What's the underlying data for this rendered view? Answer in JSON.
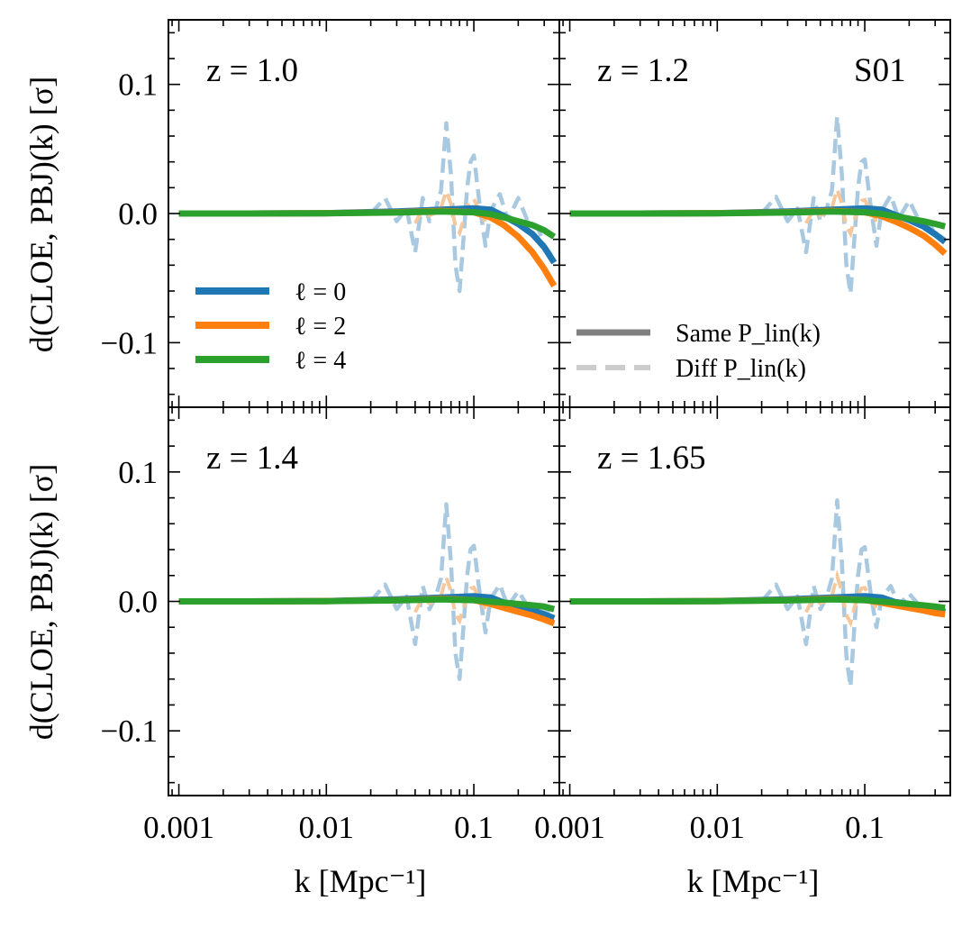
{
  "figure": {
    "xlabel": "k [Mpc⁻¹]",
    "ylabel": "d(CLOE, PBJ)(k) [σ]",
    "badge": "S01"
  },
  "colors": {
    "l0": "#1f77b4",
    "l2": "#ff7f0e",
    "l4": "#2ca02c",
    "diff": "#a9c9e0",
    "diff_orange": "#f6c79a",
    "legend_same": "#808080",
    "legend_diff": "#cccccc"
  },
  "legend_left": {
    "placement": "center-left of top-left panel",
    "entries": [
      {
        "label": "ℓ = 0",
        "color": "#1f77b4"
      },
      {
        "label": "ℓ = 2",
        "color": "#ff7f0e"
      },
      {
        "label": "ℓ = 4",
        "color": "#2ca02c"
      }
    ]
  },
  "legend_right": {
    "placement": "lower-right of top-right panel",
    "entries": [
      {
        "label": "Same P_lin(k)",
        "style": "solid"
      },
      {
        "label": "Diff P_lin(k)",
        "style": "dashed"
      }
    ]
  },
  "chart_data": [
    {
      "type": "line",
      "title": "z = 1.0",
      "xscale": "log",
      "xlim": [
        0.00085,
        0.38
      ],
      "ylim": [
        -0.15,
        0.15
      ],
      "xticklabels": [
        "0.001",
        "0.01",
        "0.1"
      ],
      "yticklabels": [
        "−0.1",
        "0.0",
        "0.1"
      ],
      "x": [
        0.001,
        0.003,
        0.01,
        0.03,
        0.06,
        0.1,
        0.13,
        0.16,
        0.2,
        0.25,
        0.3,
        0.35
      ],
      "series": [
        {
          "name": "ℓ = 0",
          "style": "solid",
          "values": [
            0,
            0,
            0.0003,
            0.0015,
            0.003,
            0.004,
            0.003,
            -0.002,
            -0.008,
            -0.016,
            -0.026,
            -0.038
          ]
        },
        {
          "name": "ℓ = 2",
          "style": "solid",
          "values": [
            0,
            0,
            0.0003,
            0.001,
            0.002,
            0.001,
            -0.003,
            -0.009,
            -0.018,
            -0.03,
            -0.043,
            -0.056
          ]
        },
        {
          "name": "ℓ = 4",
          "style": "solid",
          "values": [
            0,
            0,
            0.0002,
            0.0008,
            0.0015,
            0.001,
            -0.0005,
            -0.003,
            -0.006,
            -0.009,
            -0.013,
            -0.018
          ]
        }
      ],
      "diff": {
        "x": [
          0.02,
          0.025,
          0.03,
          0.035,
          0.04,
          0.045,
          0.05,
          0.055,
          0.06,
          0.065,
          0.07,
          0.075,
          0.08,
          0.085,
          0.09,
          0.095,
          0.1,
          0.11,
          0.12,
          0.13,
          0.15,
          0.17,
          0.2,
          0.23,
          0.27,
          0.3,
          0.35
        ],
        "values": [
          0,
          0.012,
          -0.006,
          0.004,
          -0.03,
          0.012,
          -0.006,
          0.003,
          0.018,
          0.07,
          0.03,
          -0.04,
          -0.06,
          -0.02,
          0.02,
          0.04,
          0.045,
          0.005,
          -0.025,
          0.002,
          0.015,
          -0.005,
          0.012,
          -0.005,
          -0.01,
          -0.025,
          -0.035
        ]
      }
    },
    {
      "type": "line",
      "title": "z = 1.2",
      "xscale": "log",
      "xlim": [
        0.00085,
        0.38
      ],
      "ylim": [
        -0.15,
        0.15
      ],
      "xticklabels": [
        "0.001",
        "0.01",
        "0.1"
      ],
      "yticklabels": [],
      "x": [
        0.001,
        0.003,
        0.01,
        0.03,
        0.06,
        0.1,
        0.13,
        0.16,
        0.2,
        0.25,
        0.3,
        0.35
      ],
      "series": [
        {
          "name": "ℓ = 0",
          "style": "solid",
          "values": [
            0,
            0,
            0.0003,
            0.0015,
            0.003,
            0.004,
            0.003,
            -0.001,
            -0.005,
            -0.01,
            -0.016,
            -0.022
          ]
        },
        {
          "name": "ℓ = 2",
          "style": "solid",
          "values": [
            0,
            0,
            0.0003,
            0.001,
            0.002,
            0.001,
            -0.002,
            -0.006,
            -0.011,
            -0.017,
            -0.024,
            -0.031
          ]
        },
        {
          "name": "ℓ = 4",
          "style": "solid",
          "values": [
            0,
            0,
            0.0002,
            0.0008,
            0.0015,
            0.001,
            -0.0003,
            -0.002,
            -0.004,
            -0.006,
            -0.008,
            -0.01
          ]
        }
      ],
      "diff": {
        "x": [
          0.02,
          0.025,
          0.03,
          0.035,
          0.04,
          0.045,
          0.05,
          0.055,
          0.06,
          0.065,
          0.07,
          0.075,
          0.08,
          0.085,
          0.09,
          0.095,
          0.1,
          0.11,
          0.12,
          0.13,
          0.15,
          0.17,
          0.2,
          0.23,
          0.27,
          0.3,
          0.35
        ],
        "values": [
          0,
          0.013,
          -0.006,
          0.004,
          -0.03,
          0.012,
          -0.006,
          0.003,
          0.018,
          0.075,
          0.03,
          -0.04,
          -0.062,
          -0.02,
          0.02,
          0.04,
          0.042,
          0.005,
          -0.025,
          0.002,
          0.014,
          -0.004,
          0.01,
          -0.004,
          -0.008,
          -0.015,
          -0.02
        ]
      }
    },
    {
      "type": "line",
      "title": "z = 1.4",
      "xscale": "log",
      "xlim": [
        0.00085,
        0.38
      ],
      "ylim": [
        -0.15,
        0.15
      ],
      "xticklabels": [
        "0.001",
        "0.01",
        "0.1"
      ],
      "yticklabels": [
        "−0.1",
        "0.0",
        "0.1"
      ],
      "x": [
        0.001,
        0.003,
        0.01,
        0.03,
        0.06,
        0.1,
        0.13,
        0.16,
        0.2,
        0.25,
        0.3,
        0.35
      ],
      "series": [
        {
          "name": "ℓ = 0",
          "style": "solid",
          "values": [
            0,
            0,
            0.0003,
            0.0015,
            0.003,
            0.004,
            0.003,
            -0.001,
            -0.004,
            -0.007,
            -0.01,
            -0.013
          ]
        },
        {
          "name": "ℓ = 2",
          "style": "solid",
          "values": [
            0,
            0,
            0.0003,
            0.001,
            0.002,
            0.001,
            -0.002,
            -0.005,
            -0.008,
            -0.011,
            -0.014,
            -0.017
          ]
        },
        {
          "name": "ℓ = 4",
          "style": "solid",
          "values": [
            0,
            0,
            0.0002,
            0.0008,
            0.0015,
            0.001,
            -0.0003,
            -0.001,
            -0.002,
            -0.003,
            -0.004,
            -0.006
          ]
        }
      ],
      "diff": {
        "x": [
          0.02,
          0.025,
          0.03,
          0.035,
          0.04,
          0.045,
          0.05,
          0.055,
          0.06,
          0.065,
          0.07,
          0.075,
          0.08,
          0.085,
          0.09,
          0.095,
          0.1,
          0.11,
          0.12,
          0.13,
          0.15,
          0.17,
          0.2,
          0.23,
          0.27,
          0.3,
          0.35
        ],
        "values": [
          0,
          0.013,
          -0.006,
          0.004,
          -0.033,
          0.012,
          -0.006,
          0.003,
          0.018,
          0.075,
          0.03,
          -0.04,
          -0.06,
          -0.02,
          0.02,
          0.04,
          0.043,
          0.005,
          -0.024,
          0.002,
          0.013,
          -0.004,
          0.008,
          -0.003,
          -0.005,
          -0.008,
          -0.01
        ]
      }
    },
    {
      "type": "line",
      "title": "z = 1.65",
      "xscale": "log",
      "xlim": [
        0.00085,
        0.38
      ],
      "ylim": [
        -0.15,
        0.15
      ],
      "xticklabels": [
        "0.001",
        "0.01",
        "0.1"
      ],
      "yticklabels": [],
      "x": [
        0.001,
        0.003,
        0.01,
        0.03,
        0.06,
        0.1,
        0.13,
        0.16,
        0.2,
        0.25,
        0.3,
        0.35
      ],
      "series": [
        {
          "name": "ℓ = 0",
          "style": "solid",
          "values": [
            0,
            0,
            0.0003,
            0.0015,
            0.003,
            0.004,
            0.003,
            -0.0005,
            -0.002,
            -0.004,
            -0.006,
            -0.008
          ]
        },
        {
          "name": "ℓ = 2",
          "style": "solid",
          "values": [
            0,
            0,
            0.0003,
            0.001,
            0.002,
            0.001,
            -0.001,
            -0.003,
            -0.005,
            -0.007,
            -0.009,
            -0.01
          ]
        },
        {
          "name": "ℓ = 4",
          "style": "solid",
          "values": [
            0,
            0,
            0.0002,
            0.0008,
            0.0015,
            0.001,
            -0.0002,
            -0.001,
            -0.002,
            -0.003,
            -0.004,
            -0.005
          ]
        }
      ],
      "diff": {
        "x": [
          0.02,
          0.025,
          0.03,
          0.035,
          0.04,
          0.045,
          0.05,
          0.055,
          0.06,
          0.065,
          0.07,
          0.075,
          0.08,
          0.085,
          0.09,
          0.095,
          0.1,
          0.11,
          0.12,
          0.13,
          0.15,
          0.17,
          0.2,
          0.23,
          0.27,
          0.3,
          0.35
        ],
        "values": [
          0,
          0.013,
          -0.006,
          0.004,
          -0.033,
          0.012,
          -0.006,
          0.003,
          0.018,
          0.078,
          0.03,
          -0.042,
          -0.066,
          -0.02,
          0.02,
          0.04,
          0.042,
          0.005,
          -0.02,
          0.002,
          0.012,
          -0.003,
          0.006,
          -0.002,
          -0.004,
          -0.005,
          -0.006
        ]
      }
    }
  ]
}
